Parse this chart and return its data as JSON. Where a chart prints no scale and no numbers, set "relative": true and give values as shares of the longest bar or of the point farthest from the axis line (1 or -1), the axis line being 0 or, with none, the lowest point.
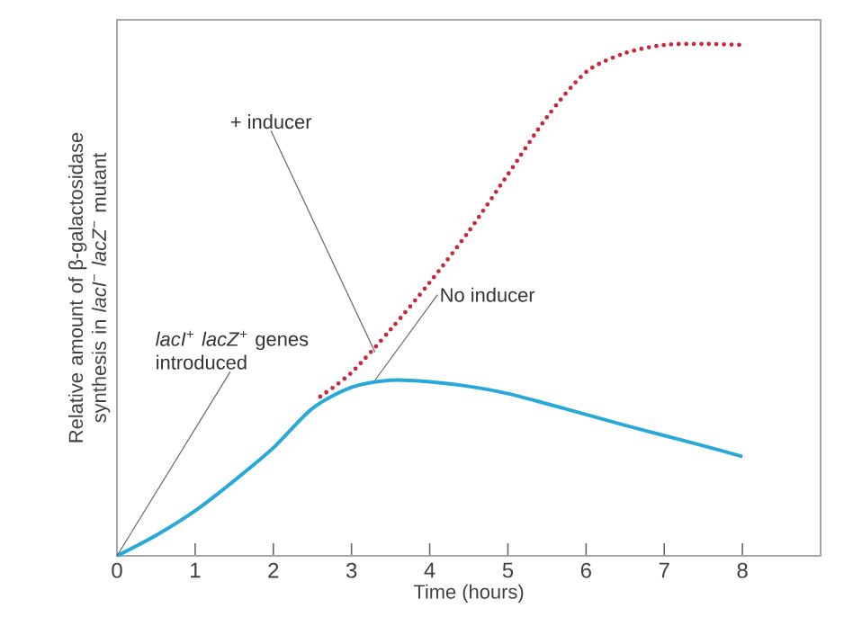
{
  "chart_data": {
    "type": "line",
    "relative": true,
    "xlabel": "Time (hours)",
    "ylabel": "Relative amount of β-galactosidase synthesis in *lacI*$^{−}$ *lacZ*$^{−}$ mutant",
    "xlim": [
      0,
      9
    ],
    "xticks": [
      0,
      1,
      2,
      3,
      4,
      5,
      6,
      7,
      8
    ],
    "grid": false,
    "series": [
      {
        "name": "+ inducer",
        "color": "#c8283c",
        "line_style": "dotted",
        "x": [
          2.6,
          3,
          3.5,
          4,
          4.5,
          5,
          5.5,
          6,
          6.5,
          7,
          7.5,
          8
        ],
        "values": [
          0.311,
          0.358,
          0.442,
          0.534,
          0.634,
          0.745,
          0.857,
          0.945,
          0.982,
          0.998,
          1,
          0.998
        ]
      },
      {
        "name": "No inducer",
        "color": "#29a9d9",
        "line_style": "solid",
        "x": [
          0,
          0.5,
          1,
          1.5,
          2,
          2.5,
          3,
          3.5,
          4,
          4.5,
          5,
          5.5,
          6,
          6.5,
          7,
          7.5,
          8
        ],
        "values": [
          0,
          0.04,
          0.088,
          0.147,
          0.211,
          0.288,
          0.329,
          0.343,
          0.34,
          0.331,
          0.317,
          0.297,
          0.276,
          0.255,
          0.235,
          0.215,
          0.194
        ]
      }
    ],
    "annotations": [
      {
        "text": "*lacI*$^{+}$ *lacZ*$^{+}$ genes introduced",
        "x": 0,
        "y": 0
      }
    ]
  }
}
